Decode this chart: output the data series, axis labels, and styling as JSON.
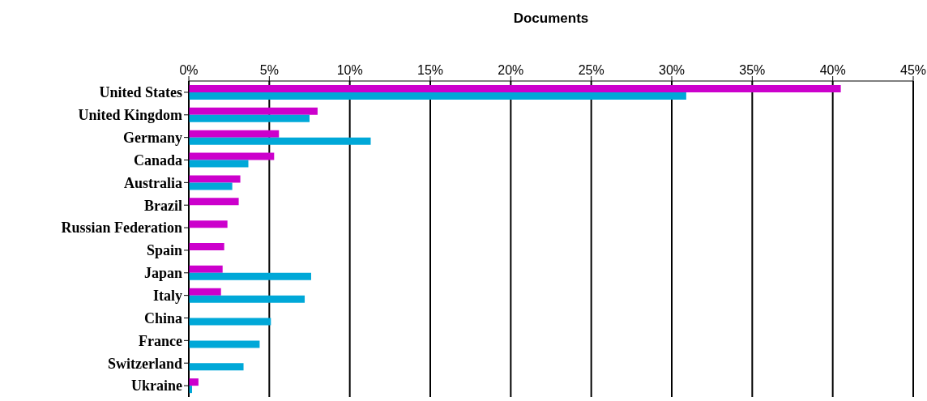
{
  "chart_data": {
    "type": "bar",
    "orientation": "horizontal",
    "xlabel": "Documents",
    "categories": [
      "United States",
      "United Kingdom",
      "Germany",
      "Canada",
      "Australia",
      "Brazil",
      "Russian Federation",
      "Spain",
      "Japan",
      "Italy",
      "China",
      "France",
      "Switzerland",
      "Ukraine"
    ],
    "series": [
      {
        "color": "#cc00cc",
        "values": [
          40.5,
          8.0,
          5.6,
          5.3,
          3.2,
          3.1,
          2.4,
          2.2,
          2.1,
          2.0,
          null,
          null,
          null,
          0.6
        ]
      },
      {
        "color": "#00a8d8",
        "values": [
          30.9,
          7.5,
          11.3,
          3.7,
          2.7,
          null,
          null,
          null,
          7.6,
          7.2,
          5.1,
          4.4,
          3.4,
          0.2
        ]
      }
    ],
    "xlim": [
      0,
      45
    ],
    "xticks": [
      {
        "value": 0,
        "label": "0%"
      },
      {
        "value": 5,
        "label": "5%"
      },
      {
        "value": 10,
        "label": "10%"
      },
      {
        "value": 15,
        "label": "15%"
      },
      {
        "value": 20,
        "label": "20%"
      },
      {
        "value": 25,
        "label": "25%"
      },
      {
        "value": 30,
        "label": "30%"
      },
      {
        "value": 35,
        "label": "35%"
      },
      {
        "value": 40,
        "label": "40%"
      },
      {
        "value": 45,
        "label": "45%"
      }
    ],
    "grid": "x"
  }
}
